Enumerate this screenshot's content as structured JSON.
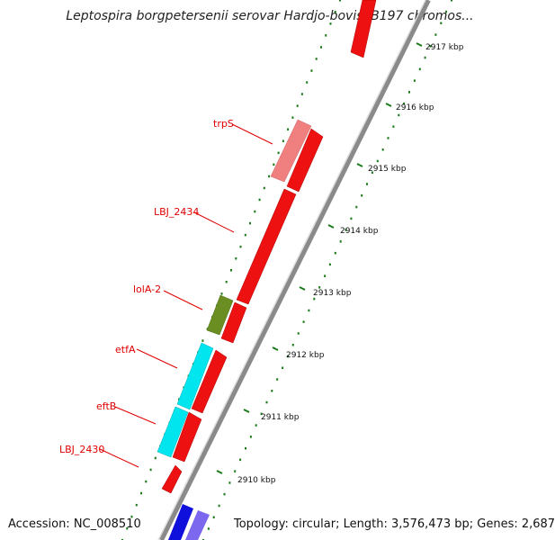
{
  "title": "Leptospira borgpetersenii serovar Hardjo-bovis JB197 chromos...",
  "footer": {
    "accession": "Accession: NC_008510",
    "summary": "Topology: circular; Length: 3,576,473 bp; Genes: 2,687"
  },
  "scale": {
    "unit": "kbp",
    "ticks": [
      {
        "kbp": 2917,
        "label": "2917 kbp"
      },
      {
        "kbp": 2916,
        "label": "2916 kbp"
      },
      {
        "kbp": 2915,
        "label": "2915 kbp"
      },
      {
        "kbp": 2914,
        "label": "2914 kbp"
      },
      {
        "kbp": 2913,
        "label": "2913 kbp"
      },
      {
        "kbp": 2912,
        "label": "2912 kbp"
      },
      {
        "kbp": 2911,
        "label": "2911 kbp"
      },
      {
        "kbp": 2910,
        "label": "2910 kbp"
      }
    ]
  },
  "gene_labels": [
    "trpS",
    "LBJ_2434",
    "lolA-2",
    "etfA",
    "eftB",
    "LBJ_2430"
  ],
  "colors": {
    "cds": "#ee1111",
    "trpS": "#f08080",
    "lolA-2": "#6b8e23",
    "etf": "#00e5ee",
    "blue_feature": "#1010dd",
    "violet_feature": "#7b68ee",
    "backbone": "#888888",
    "gc_ticks": "#1a7a1a"
  }
}
